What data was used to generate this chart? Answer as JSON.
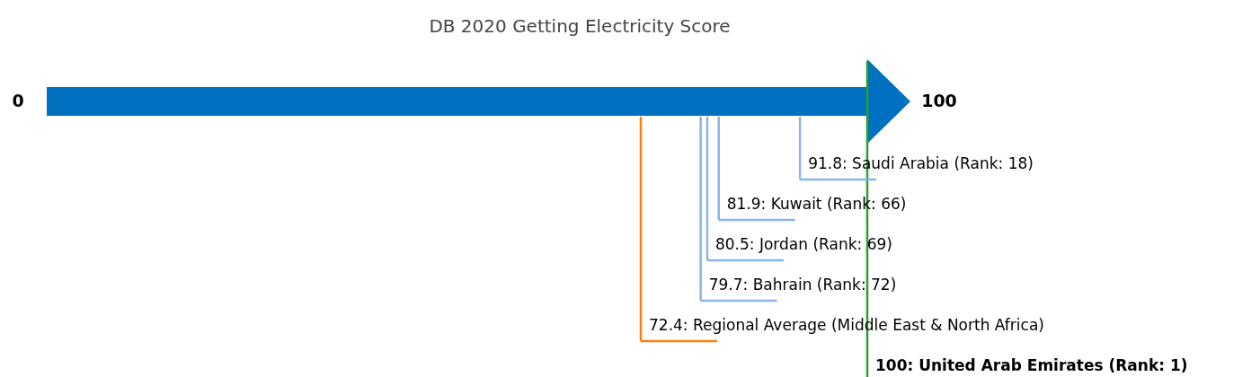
{
  "chart_data": {
    "type": "other",
    "title": "DB 2020 Getting Electricity Score",
    "values": [
      91.8,
      81.9,
      80.5,
      79.7,
      72.4,
      100
    ],
    "value_labels": [
      "91.8: Saudi Arabia (Rank: 18)",
      "81.9: Kuwait (Rank: 66)",
      "80.5: Jordan (Rank: 69)",
      "79.7: Bahrain (Rank: 72)",
      "72.4: Regional Average (Middle East & North Africa)",
      "100: United Arab Emirates (Rank: 1)"
    ],
    "colors": [
      "#8ab4ea",
      "#8ab4ea",
      "#8ab4ea",
      "#8ab4ea",
      "#ff7f0e",
      "#2ca02c"
    ],
    "annotations": [
      "0",
      "100"
    ]
  }
}
